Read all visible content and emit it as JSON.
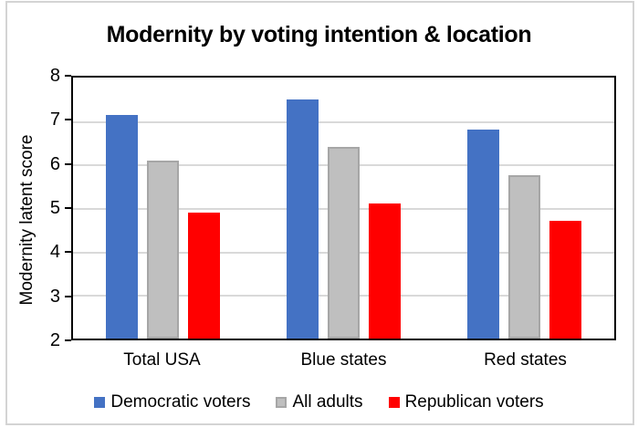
{
  "chart_data": {
    "type": "bar",
    "title": "Modernity by voting intention & location",
    "ylabel": "Modernity latent score",
    "xlabel": "",
    "categories": [
      "Total USA",
      "Blue states",
      "Red states"
    ],
    "series": [
      {
        "name": "Democratic voters",
        "color": "#4472C4",
        "values": [
          7.15,
          7.5,
          6.8
        ]
      },
      {
        "name": "All adults",
        "color": "#BFBFBF",
        "border_color": "#A6A6A6",
        "values": [
          6.1,
          6.4,
          5.75
        ]
      },
      {
        "name": "Republican voters",
        "color": "#FF0000",
        "values": [
          4.9,
          5.1,
          4.7
        ]
      }
    ],
    "ylim": [
      2,
      8
    ],
    "yticks": [
      2,
      3,
      4,
      5,
      6,
      7,
      8
    ],
    "grid": true,
    "gridline_color": "#D9D9D9",
    "axis_color": "#000000",
    "frame_color": "#D4D4D4",
    "legend_position": "bottom"
  }
}
